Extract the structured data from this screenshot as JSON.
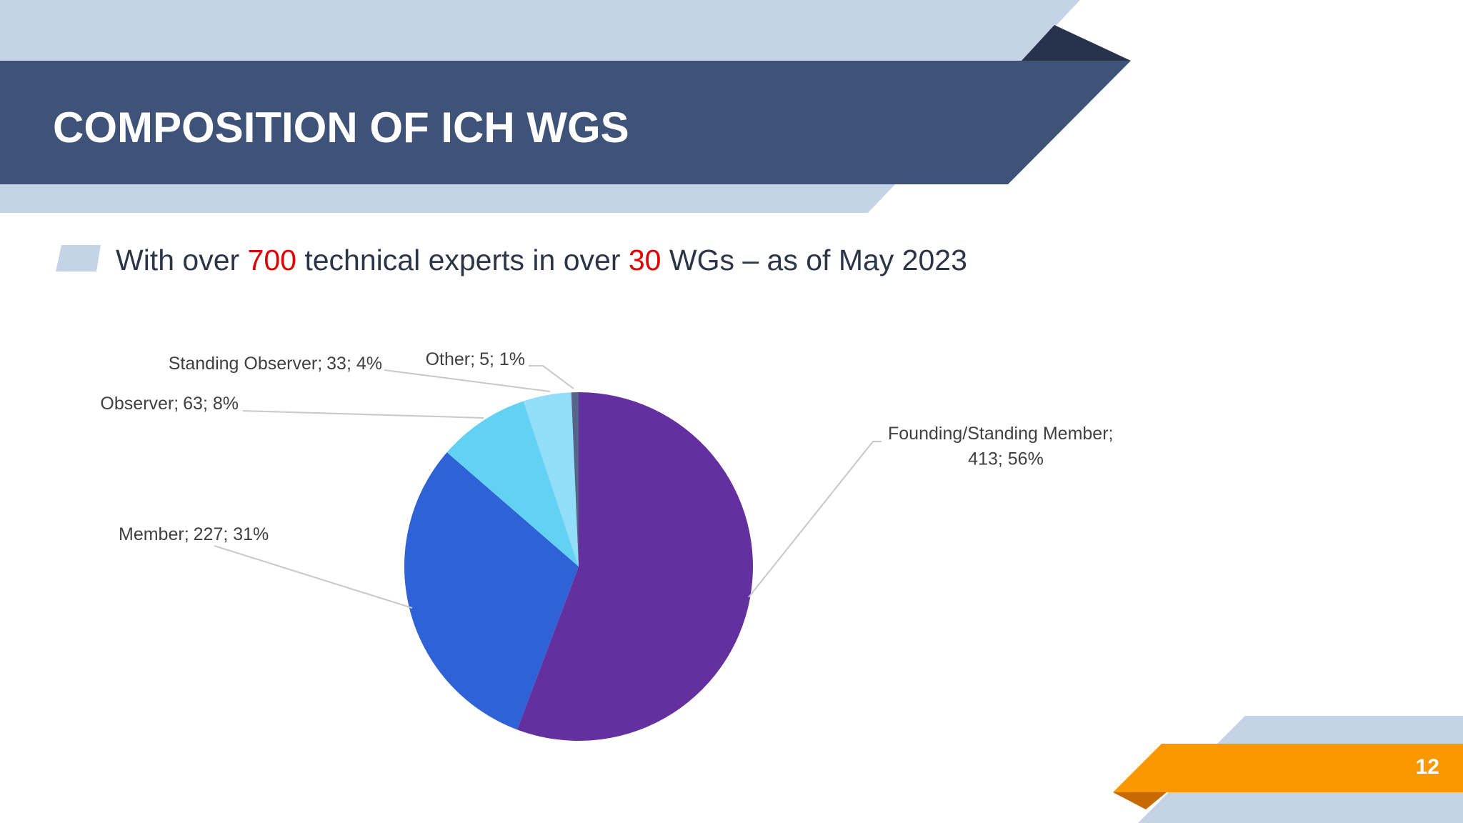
{
  "title": "COMPOSITION OF ICH WGS",
  "bullet": {
    "parts": [
      "With over ",
      "700",
      " technical experts in over ",
      "30",
      " WGs – as of May 2023"
    ]
  },
  "page_number": "12",
  "chart_data": {
    "type": "pie",
    "categories": [
      "Founding/Standing Member",
      "Member",
      "Observer",
      "Standing Observer",
      "Other"
    ],
    "values": [
      413,
      227,
      63,
      33,
      5
    ],
    "value_labels": [
      "413; 56%",
      "227; 31%",
      "63; 8%",
      "33; 4%",
      "5; 1%"
    ],
    "label_separator": ";",
    "colors": [
      "#6430a0",
      "#2e62d6",
      "#62d2f2",
      "#92ddf8",
      "#56648a"
    ]
  }
}
